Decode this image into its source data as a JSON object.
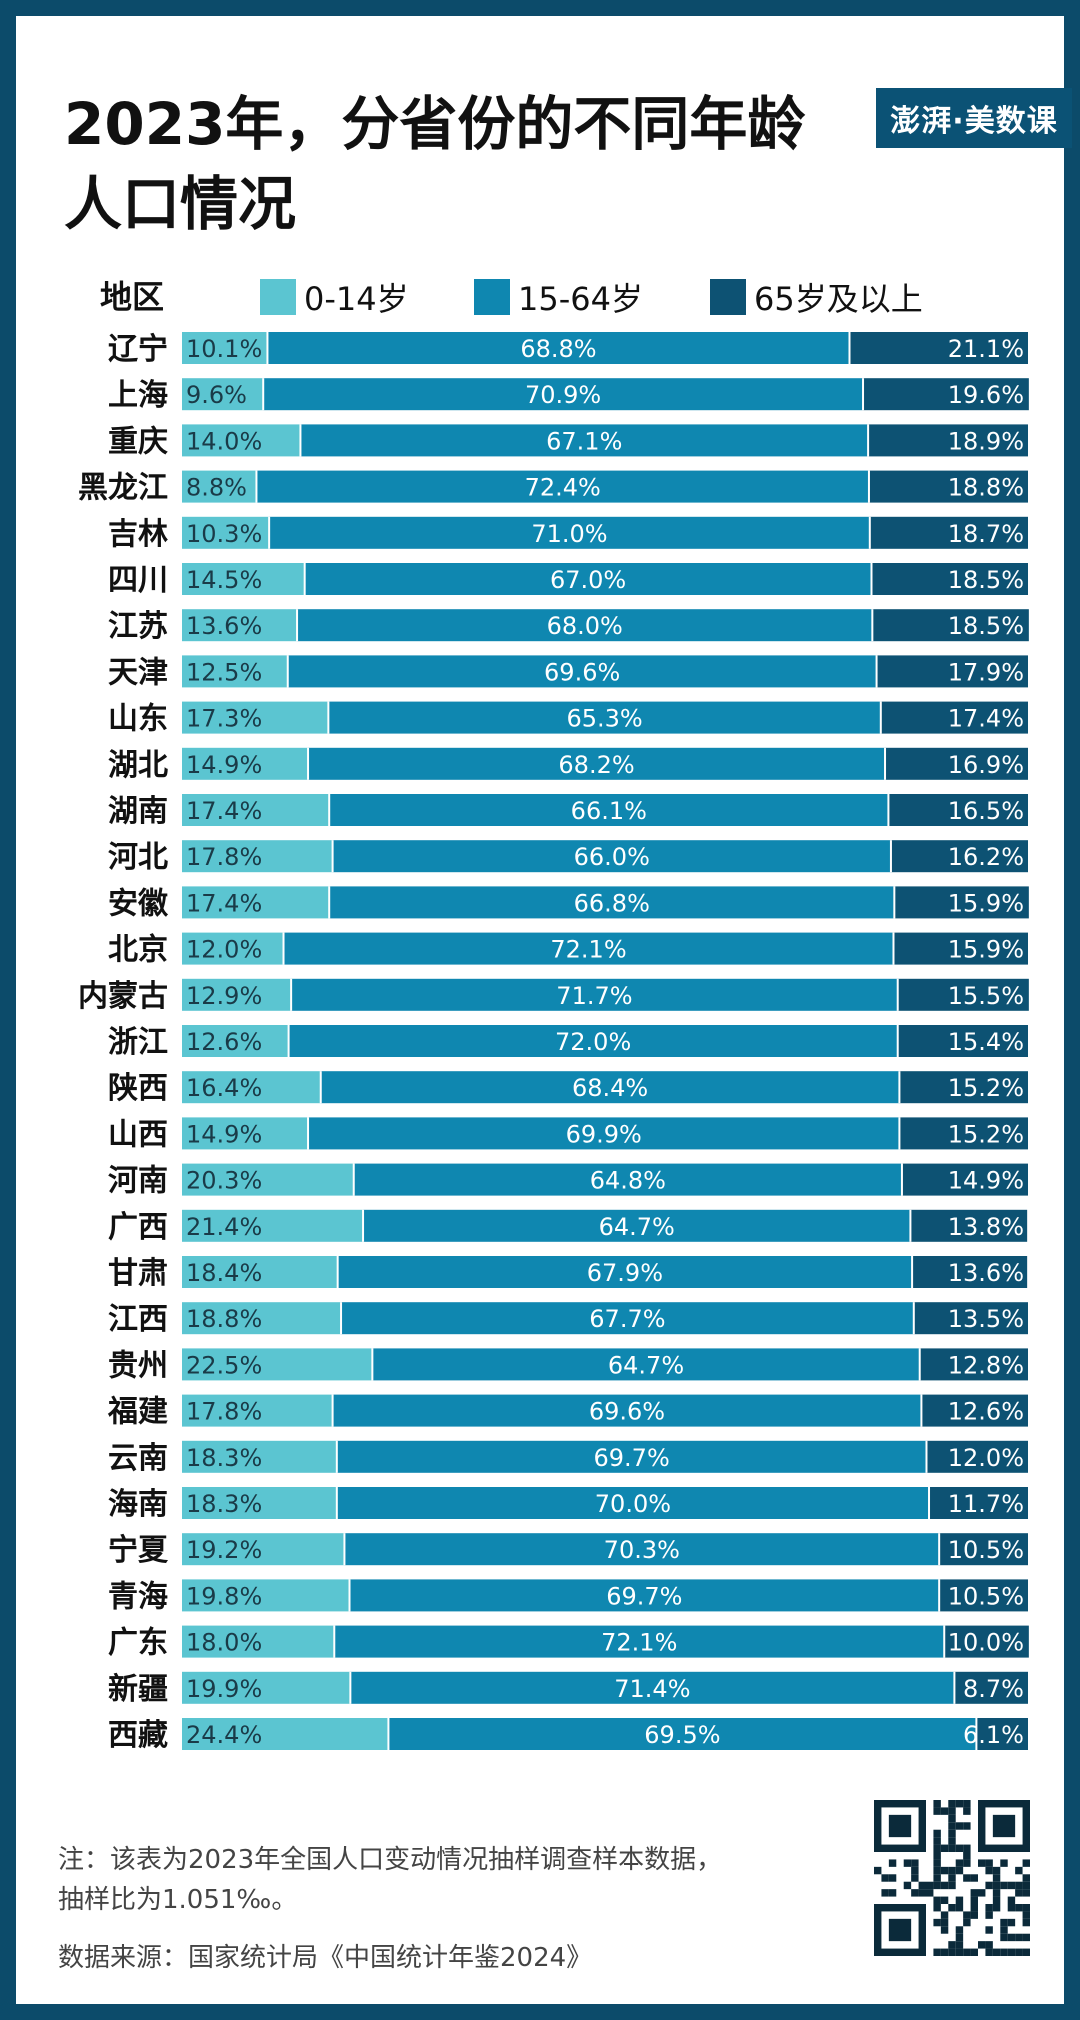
{
  "title": "2023年，分省份的不同年龄人口情况",
  "logo_text": "澎湃·美数课",
  "legend": {
    "header": "地区",
    "items": [
      {
        "label": "0-14岁",
        "color": "#5bc5d1"
      },
      {
        "label": "15-64岁",
        "color": "#0f87b0"
      },
      {
        "label": "65岁及以上",
        "color": "#0d5273"
      }
    ]
  },
  "note": "注：该表为2023年全国人口变动情况抽样调查样本数据，抽样比为1.051‰。",
  "source": "数据来源：国家统计局《中国统计年鉴2024》",
  "chart_data": {
    "type": "bar",
    "orientation": "horizontal",
    "stacked": true,
    "value_format": "percent",
    "categories": [
      "辽宁",
      "上海",
      "重庆",
      "黑龙江",
      "吉林",
      "四川",
      "江苏",
      "天津",
      "山东",
      "湖北",
      "湖南",
      "河北",
      "安徽",
      "北京",
      "内蒙古",
      "浙江",
      "陕西",
      "山西",
      "河南",
      "广西",
      "甘肃",
      "江西",
      "贵州",
      "福建",
      "云南",
      "海南",
      "宁夏",
      "青海",
      "广东",
      "新疆",
      "西藏"
    ],
    "series": [
      {
        "name": "0-14岁",
        "color": "#5bc5d1",
        "values": [
          10.1,
          9.6,
          14.0,
          8.8,
          10.3,
          14.5,
          13.6,
          12.5,
          17.3,
          14.9,
          17.4,
          17.8,
          17.4,
          12.0,
          12.9,
          12.6,
          16.4,
          14.9,
          20.3,
          21.4,
          18.4,
          18.8,
          22.5,
          17.8,
          18.3,
          18.3,
          19.2,
          19.8,
          18.0,
          19.9,
          24.4
        ]
      },
      {
        "name": "15-64岁",
        "color": "#0f87b0",
        "values": [
          68.8,
          70.9,
          67.1,
          72.4,
          71.0,
          67.0,
          68.0,
          69.6,
          65.3,
          68.2,
          66.1,
          66.0,
          66.8,
          72.1,
          71.7,
          72.0,
          68.4,
          69.9,
          64.8,
          64.7,
          67.9,
          67.7,
          64.7,
          69.6,
          69.7,
          70.0,
          70.3,
          69.7,
          72.1,
          71.4,
          69.5
        ]
      },
      {
        "name": "65岁及以上",
        "color": "#0d5273",
        "values": [
          21.1,
          19.6,
          18.9,
          18.8,
          18.7,
          18.5,
          18.5,
          17.9,
          17.4,
          16.9,
          16.5,
          16.2,
          15.9,
          15.9,
          15.5,
          15.4,
          15.2,
          15.2,
          14.9,
          13.8,
          13.6,
          13.5,
          12.8,
          12.6,
          12.0,
          11.7,
          10.5,
          10.5,
          10.0,
          8.7,
          6.1
        ]
      }
    ],
    "xlim": [
      0,
      100
    ],
    "legend_position": "top"
  }
}
